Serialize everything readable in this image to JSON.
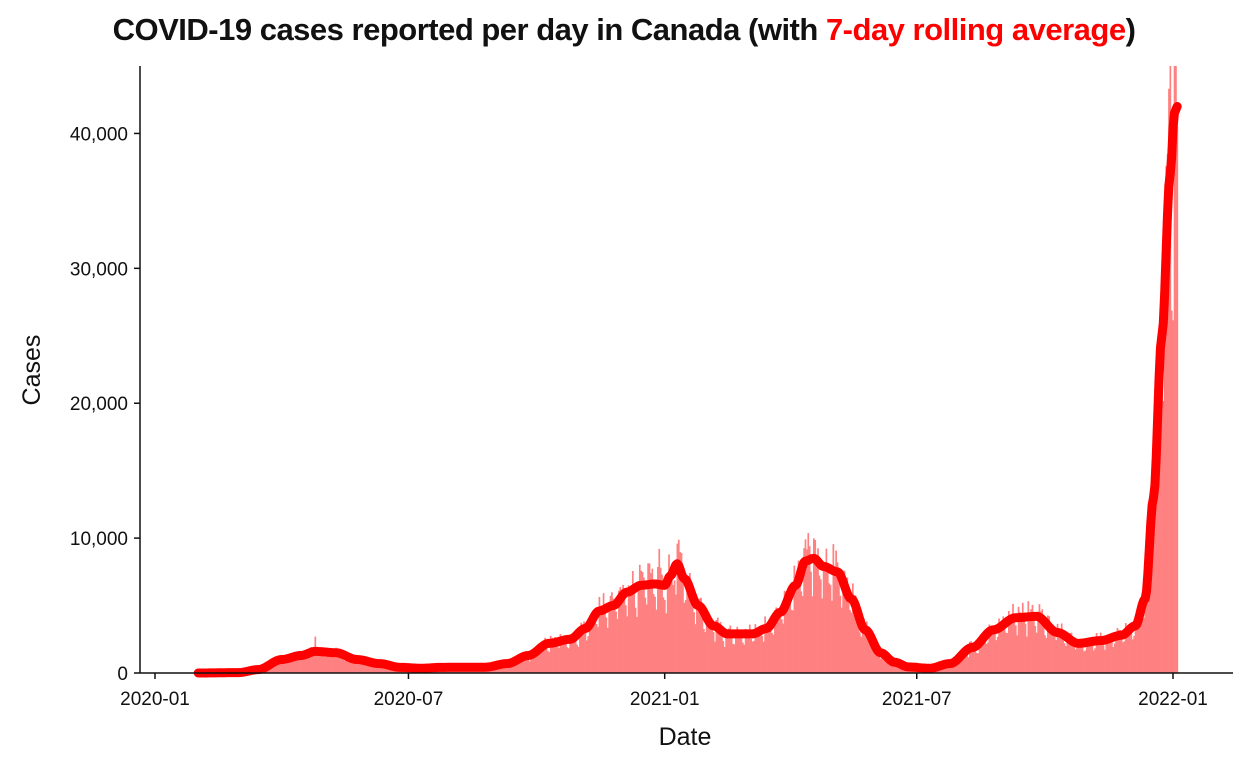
{
  "title": {
    "prefix": "COVID-19 cases reported per day in Canada (with ",
    "highlight": "7-day rolling average",
    "suffix": ")"
  },
  "colors": {
    "bar": "#ff8080",
    "line": "#ff0000",
    "highlight": "#ff0000",
    "axis": "#111111"
  },
  "chart_data": {
    "type": "bar",
    "overlay": "line",
    "xlabel": "Date",
    "ylabel": "Cases",
    "xlim": [
      "2020-01-01",
      "2022-01-01"
    ],
    "x_ticks": [
      "2020-01",
      "2020-07",
      "2021-01",
      "2021-07",
      "2022-01"
    ],
    "ylim": [
      0,
      45000
    ],
    "y_ticks": [
      0,
      10000,
      20000,
      30000,
      40000
    ],
    "y_tick_labels": [
      "0",
      "10,000",
      "20,000",
      "30,000",
      "40,000"
    ],
    "grid": false,
    "legend": "none",
    "series": [
      {
        "name": "7-day rolling average",
        "style": "line",
        "points": [
          [
            "2020-02-01",
            0
          ],
          [
            "2020-03-01",
            30
          ],
          [
            "2020-03-15",
            250
          ],
          [
            "2020-04-01",
            1000
          ],
          [
            "2020-04-15",
            1300
          ],
          [
            "2020-04-25",
            1600
          ],
          [
            "2020-05-10",
            1500
          ],
          [
            "2020-05-25",
            1000
          ],
          [
            "2020-06-10",
            700
          ],
          [
            "2020-06-25",
            420
          ],
          [
            "2020-07-10",
            350
          ],
          [
            "2020-07-25",
            420
          ],
          [
            "2020-08-10",
            430
          ],
          [
            "2020-08-25",
            430
          ],
          [
            "2020-09-10",
            700
          ],
          [
            "2020-09-25",
            1300
          ],
          [
            "2020-10-10",
            2200
          ],
          [
            "2020-10-25",
            2500
          ],
          [
            "2020-11-05",
            3300
          ],
          [
            "2020-11-15",
            4600
          ],
          [
            "2020-11-25",
            5000
          ],
          [
            "2020-12-05",
            6000
          ],
          [
            "2020-12-15",
            6500
          ],
          [
            "2020-12-25",
            6600
          ],
          [
            "2021-01-01",
            6500
          ],
          [
            "2021-01-05",
            7200
          ],
          [
            "2021-01-10",
            8100
          ],
          [
            "2021-01-15",
            7000
          ],
          [
            "2021-01-25",
            5000
          ],
          [
            "2021-02-05",
            3500
          ],
          [
            "2021-02-15",
            2900
          ],
          [
            "2021-02-25",
            2900
          ],
          [
            "2021-03-05",
            2900
          ],
          [
            "2021-03-15",
            3300
          ],
          [
            "2021-03-25",
            4500
          ],
          [
            "2021-04-05",
            6500
          ],
          [
            "2021-04-12",
            8300
          ],
          [
            "2021-04-18",
            8500
          ],
          [
            "2021-04-25",
            7900
          ],
          [
            "2021-05-05",
            7500
          ],
          [
            "2021-05-15",
            5500
          ],
          [
            "2021-05-25",
            3200
          ],
          [
            "2021-06-05",
            1500
          ],
          [
            "2021-06-15",
            800
          ],
          [
            "2021-06-25",
            450
          ],
          [
            "2021-07-10",
            350
          ],
          [
            "2021-07-25",
            700
          ],
          [
            "2021-08-10",
            1900
          ],
          [
            "2021-08-25",
            3200
          ],
          [
            "2021-09-10",
            4100
          ],
          [
            "2021-09-25",
            4200
          ],
          [
            "2021-10-10",
            3000
          ],
          [
            "2021-10-25",
            2200
          ],
          [
            "2021-11-10",
            2400
          ],
          [
            "2021-11-25",
            2800
          ],
          [
            "2021-12-05",
            3500
          ],
          [
            "2021-12-12",
            5500
          ],
          [
            "2021-12-18",
            13000
          ],
          [
            "2021-12-24",
            25000
          ],
          [
            "2021-12-30",
            37000
          ],
          [
            "2022-01-02",
            41500
          ],
          [
            "2022-01-04",
            42000
          ]
        ]
      },
      {
        "name": "cases reported per day",
        "style": "bar",
        "note_points": [
          [
            "2020-04-25",
            2700
          ],
          [
            "2020-12-28",
            9200
          ],
          [
            "2021-04-15",
            9400
          ],
          [
            "2021-09-05",
            4600
          ],
          [
            "2021-12-22",
            25500
          ],
          [
            "2021-12-30",
            45000
          ]
        ]
      }
    ]
  }
}
